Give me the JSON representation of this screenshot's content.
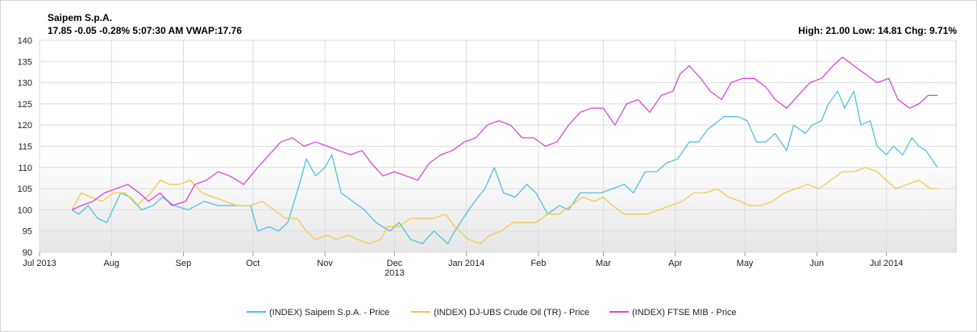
{
  "header": {
    "title": "Saipem S.p.A.",
    "quote": "17.85 -0.05 -0.28%  5:07:30  AM VWAP:17.76",
    "stats": "High: 21.00 Low: 14.81 Chg: 9.71%"
  },
  "chart_data": {
    "type": "line",
    "title": "",
    "xlabel": "",
    "ylabel": "",
    "ylim": [
      90,
      140
    ],
    "y_ticks": [
      90,
      95,
      100,
      105,
      110,
      115,
      120,
      125,
      130,
      135,
      140
    ],
    "x_start": "2013-07-01",
    "x_end": "2014-07-31",
    "x_ticks": [
      {
        "date": "2013-07-01",
        "label": "Jul 2013",
        "sub": ""
      },
      {
        "date": "2013-08-01",
        "label": "Aug",
        "sub": ""
      },
      {
        "date": "2013-09-01",
        "label": "Sep",
        "sub": ""
      },
      {
        "date": "2013-10-01",
        "label": "Oct",
        "sub": ""
      },
      {
        "date": "2013-11-01",
        "label": "Nov",
        "sub": ""
      },
      {
        "date": "2013-12-01",
        "label": "Dec",
        "sub": "2013"
      },
      {
        "date": "2014-01-01",
        "label": "Jan 2014",
        "sub": ""
      },
      {
        "date": "2014-02-01",
        "label": "Feb",
        "sub": ""
      },
      {
        "date": "2014-03-01",
        "label": "Mar",
        "sub": ""
      },
      {
        "date": "2014-04-01",
        "label": "Apr",
        "sub": ""
      },
      {
        "date": "2014-05-01",
        "label": "May",
        "sub": ""
      },
      {
        "date": "2014-06-01",
        "label": "Jun",
        "sub": ""
      },
      {
        "date": "2014-07-01",
        "label": "Jul 2014",
        "sub": ""
      }
    ],
    "grid": true,
    "legend_position": "bottom",
    "series": [
      {
        "name": "(INDEX) Saipem S.p.A. - Price",
        "color": "#4ec3e0",
        "points": [
          [
            "2013-07-15",
            100
          ],
          [
            "2013-07-18",
            99
          ],
          [
            "2013-07-22",
            101
          ],
          [
            "2013-07-26",
            98
          ],
          [
            "2013-07-30",
            97
          ],
          [
            "2013-08-05",
            104
          ],
          [
            "2013-08-09",
            103
          ],
          [
            "2013-08-14",
            100
          ],
          [
            "2013-08-19",
            101
          ],
          [
            "2013-08-23",
            103
          ],
          [
            "2013-08-28",
            101
          ],
          [
            "2013-09-03",
            100
          ],
          [
            "2013-09-10",
            102
          ],
          [
            "2013-09-16",
            101
          ],
          [
            "2013-09-23",
            101
          ],
          [
            "2013-09-30",
            101
          ],
          [
            "2013-10-03",
            95
          ],
          [
            "2013-10-08",
            96
          ],
          [
            "2013-10-12",
            95
          ],
          [
            "2013-10-16",
            97
          ],
          [
            "2013-10-21",
            106
          ],
          [
            "2013-10-24",
            112
          ],
          [
            "2013-10-28",
            108
          ],
          [
            "2013-11-01",
            110
          ],
          [
            "2013-11-04",
            113
          ],
          [
            "2013-11-08",
            104
          ],
          [
            "2013-11-13",
            102
          ],
          [
            "2013-11-18",
            100
          ],
          [
            "2013-11-23",
            97
          ],
          [
            "2013-11-29",
            95
          ],
          [
            "2013-12-03",
            97
          ],
          [
            "2013-12-08",
            93
          ],
          [
            "2013-12-13",
            92
          ],
          [
            "2013-12-18",
            95
          ],
          [
            "2013-12-24",
            92
          ],
          [
            "2013-12-27",
            95
          ],
          [
            "2014-01-02",
            100
          ],
          [
            "2014-01-06",
            103
          ],
          [
            "2014-01-09",
            105
          ],
          [
            "2014-01-13",
            110
          ],
          [
            "2014-01-17",
            104
          ],
          [
            "2014-01-22",
            103
          ],
          [
            "2014-01-27",
            106
          ],
          [
            "2014-01-31",
            104
          ],
          [
            "2014-02-05",
            99
          ],
          [
            "2014-02-10",
            101
          ],
          [
            "2014-02-14",
            100
          ],
          [
            "2014-02-19",
            104
          ],
          [
            "2014-02-24",
            104
          ],
          [
            "2014-02-28",
            104
          ],
          [
            "2014-03-05",
            105
          ],
          [
            "2014-03-10",
            106
          ],
          [
            "2014-03-14",
            104
          ],
          [
            "2014-03-19",
            109
          ],
          [
            "2014-03-24",
            109
          ],
          [
            "2014-03-28",
            111
          ],
          [
            "2014-04-02",
            112
          ],
          [
            "2014-04-07",
            116
          ],
          [
            "2014-04-11",
            116
          ],
          [
            "2014-04-15",
            119
          ],
          [
            "2014-04-22",
            122
          ],
          [
            "2014-04-28",
            122
          ],
          [
            "2014-05-02",
            121
          ],
          [
            "2014-05-06",
            116
          ],
          [
            "2014-05-10",
            116
          ],
          [
            "2014-05-14",
            118
          ],
          [
            "2014-05-19",
            114
          ],
          [
            "2014-05-22",
            120
          ],
          [
            "2014-05-27",
            118
          ],
          [
            "2014-05-30",
            120
          ],
          [
            "2014-06-03",
            121
          ],
          [
            "2014-06-06",
            125
          ],
          [
            "2014-06-10",
            128
          ],
          [
            "2014-06-13",
            124
          ],
          [
            "2014-06-17",
            128
          ],
          [
            "2014-06-20",
            120
          ],
          [
            "2014-06-24",
            121
          ],
          [
            "2014-06-27",
            115
          ],
          [
            "2014-07-01",
            113
          ],
          [
            "2014-07-04",
            115
          ],
          [
            "2014-07-08",
            113
          ],
          [
            "2014-07-12",
            117
          ],
          [
            "2014-07-15",
            115
          ],
          [
            "2014-07-18",
            114
          ],
          [
            "2014-07-23",
            110
          ]
        ]
      },
      {
        "name": "(INDEX) DJ-UBS Crude Oil (TR) - Price",
        "color": "#f0c94a",
        "points": [
          [
            "2013-07-15",
            100
          ],
          [
            "2013-07-19",
            104
          ],
          [
            "2013-07-23",
            103
          ],
          [
            "2013-07-28",
            102
          ],
          [
            "2013-08-02",
            104
          ],
          [
            "2013-08-07",
            104
          ],
          [
            "2013-08-12",
            101
          ],
          [
            "2013-08-18",
            104
          ],
          [
            "2013-08-22",
            107
          ],
          [
            "2013-08-26",
            106
          ],
          [
            "2013-08-30",
            106
          ],
          [
            "2013-09-04",
            107
          ],
          [
            "2013-09-09",
            104
          ],
          [
            "2013-09-14",
            103
          ],
          [
            "2013-09-19",
            102
          ],
          [
            "2013-09-24",
            101
          ],
          [
            "2013-09-30",
            101
          ],
          [
            "2013-10-05",
            102
          ],
          [
            "2013-10-10",
            100
          ],
          [
            "2013-10-15",
            98
          ],
          [
            "2013-10-20",
            98
          ],
          [
            "2013-10-24",
            95
          ],
          [
            "2013-10-28",
            93
          ],
          [
            "2013-11-02",
            94
          ],
          [
            "2013-11-06",
            93
          ],
          [
            "2013-11-11",
            94
          ],
          [
            "2013-11-15",
            93
          ],
          [
            "2013-11-20",
            92
          ],
          [
            "2013-11-25",
            93
          ],
          [
            "2013-11-28",
            96
          ],
          [
            "2013-12-03",
            96
          ],
          [
            "2013-12-08",
            98
          ],
          [
            "2013-12-13",
            98
          ],
          [
            "2013-12-18",
            98
          ],
          [
            "2013-12-23",
            99
          ],
          [
            "2013-12-27",
            96
          ],
          [
            "2014-01-02",
            93
          ],
          [
            "2014-01-07",
            92
          ],
          [
            "2014-01-11",
            94
          ],
          [
            "2014-01-16",
            95
          ],
          [
            "2014-01-21",
            97
          ],
          [
            "2014-01-26",
            97
          ],
          [
            "2014-01-31",
            97
          ],
          [
            "2014-02-05",
            99
          ],
          [
            "2014-02-10",
            99
          ],
          [
            "2014-02-15",
            101
          ],
          [
            "2014-02-20",
            103
          ],
          [
            "2014-02-25",
            102
          ],
          [
            "2014-03-01",
            103
          ],
          [
            "2014-03-05",
            101
          ],
          [
            "2014-03-10",
            99
          ],
          [
            "2014-03-15",
            99
          ],
          [
            "2014-03-20",
            99
          ],
          [
            "2014-03-25",
            100
          ],
          [
            "2014-03-30",
            101
          ],
          [
            "2014-04-04",
            102
          ],
          [
            "2014-04-09",
            104
          ],
          [
            "2014-04-14",
            104
          ],
          [
            "2014-04-19",
            105
          ],
          [
            "2014-04-24",
            103
          ],
          [
            "2014-04-29",
            102
          ],
          [
            "2014-05-03",
            101
          ],
          [
            "2014-05-08",
            101
          ],
          [
            "2014-05-13",
            102
          ],
          [
            "2014-05-18",
            104
          ],
          [
            "2014-05-23",
            105
          ],
          [
            "2014-05-28",
            106
          ],
          [
            "2014-06-02",
            105
          ],
          [
            "2014-06-07",
            107
          ],
          [
            "2014-06-12",
            109
          ],
          [
            "2014-06-17",
            109
          ],
          [
            "2014-06-22",
            110
          ],
          [
            "2014-06-27",
            109
          ],
          [
            "2014-07-01",
            107
          ],
          [
            "2014-07-05",
            105
          ],
          [
            "2014-07-10",
            106
          ],
          [
            "2014-07-15",
            107
          ],
          [
            "2014-07-20",
            105
          ],
          [
            "2014-07-23",
            105
          ]
        ]
      },
      {
        "name": "(INDEX) FTSE MIB - Price",
        "color": "#d946d9",
        "points": [
          [
            "2013-07-15",
            100
          ],
          [
            "2013-07-19",
            101
          ],
          [
            "2013-07-24",
            102
          ],
          [
            "2013-07-29",
            104
          ],
          [
            "2013-08-03",
            105
          ],
          [
            "2013-08-08",
            106
          ],
          [
            "2013-08-13",
            104
          ],
          [
            "2013-08-17",
            102
          ],
          [
            "2013-08-22",
            104
          ],
          [
            "2013-08-27",
            101
          ],
          [
            "2013-09-02",
            102
          ],
          [
            "2013-09-06",
            106
          ],
          [
            "2013-09-11",
            107
          ],
          [
            "2013-09-16",
            109
          ],
          [
            "2013-09-21",
            108
          ],
          [
            "2013-09-27",
            106
          ],
          [
            "2013-10-03",
            110
          ],
          [
            "2013-10-08",
            113
          ],
          [
            "2013-10-13",
            116
          ],
          [
            "2013-10-18",
            117
          ],
          [
            "2013-10-23",
            115
          ],
          [
            "2013-10-28",
            116
          ],
          [
            "2013-11-02",
            115
          ],
          [
            "2013-11-07",
            114
          ],
          [
            "2013-11-12",
            113
          ],
          [
            "2013-11-17",
            114
          ],
          [
            "2013-11-21",
            111
          ],
          [
            "2013-11-26",
            108
          ],
          [
            "2013-12-01",
            109
          ],
          [
            "2013-12-06",
            108
          ],
          [
            "2013-12-11",
            107
          ],
          [
            "2013-12-16",
            111
          ],
          [
            "2013-12-21",
            113
          ],
          [
            "2013-12-26",
            114
          ],
          [
            "2013-12-31",
            116
          ],
          [
            "2014-01-05",
            117
          ],
          [
            "2014-01-10",
            120
          ],
          [
            "2014-01-15",
            121
          ],
          [
            "2014-01-20",
            120
          ],
          [
            "2014-01-25",
            117
          ],
          [
            "2014-01-30",
            117
          ],
          [
            "2014-02-04",
            115
          ],
          [
            "2014-02-09",
            116
          ],
          [
            "2014-02-14",
            120
          ],
          [
            "2014-02-19",
            123
          ],
          [
            "2014-02-24",
            124
          ],
          [
            "2014-03-01",
            124
          ],
          [
            "2014-03-06",
            120
          ],
          [
            "2014-03-11",
            125
          ],
          [
            "2014-03-16",
            126
          ],
          [
            "2014-03-21",
            123
          ],
          [
            "2014-03-26",
            127
          ],
          [
            "2014-03-31",
            128
          ],
          [
            "2014-04-03",
            132
          ],
          [
            "2014-04-07",
            134
          ],
          [
            "2014-04-12",
            131
          ],
          [
            "2014-04-16",
            128
          ],
          [
            "2014-04-21",
            126
          ],
          [
            "2014-04-25",
            130
          ],
          [
            "2014-04-30",
            131
          ],
          [
            "2014-05-05",
            131
          ],
          [
            "2014-05-10",
            129
          ],
          [
            "2014-05-14",
            126
          ],
          [
            "2014-05-19",
            124
          ],
          [
            "2014-05-24",
            127
          ],
          [
            "2014-05-29",
            130
          ],
          [
            "2014-06-03",
            131
          ],
          [
            "2014-06-08",
            134
          ],
          [
            "2014-06-12",
            136
          ],
          [
            "2014-06-17",
            134
          ],
          [
            "2014-06-22",
            132
          ],
          [
            "2014-06-27",
            130
          ],
          [
            "2014-07-02",
            131
          ],
          [
            "2014-07-06",
            126
          ],
          [
            "2014-07-11",
            124
          ],
          [
            "2014-07-15",
            125
          ],
          [
            "2014-07-19",
            127
          ],
          [
            "2014-07-23",
            127
          ]
        ]
      }
    ]
  }
}
